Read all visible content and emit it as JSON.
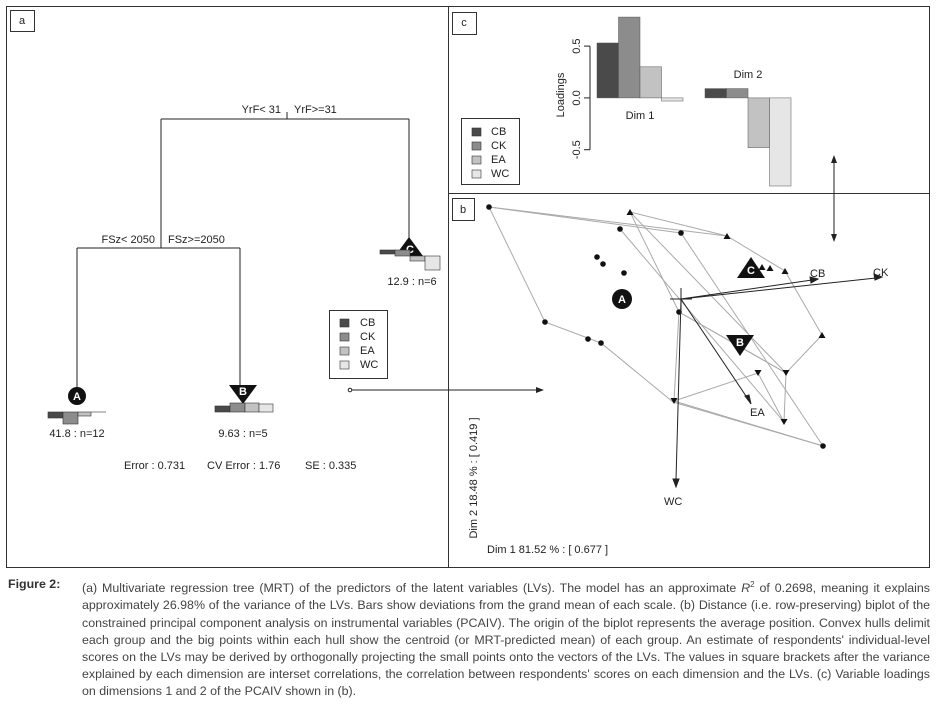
{
  "panel_a": {
    "label": "a",
    "splits": [
      "YrF< 31",
      "YrF>=31",
      "FSz< 2050",
      "FSz>=2050"
    ],
    "nodes": [
      {
        "marker": "A",
        "label": "41.8 : n=12"
      },
      {
        "marker": "B",
        "label": "9.63 : n=5"
      },
      {
        "marker": "C",
        "label": "12.9 : n=6"
      }
    ],
    "legend": [
      "CB",
      "CK",
      "EA",
      "WC"
    ],
    "errors": [
      "Error :  0.731",
      "CV Error :  1.76",
      "SE :  0.335"
    ]
  },
  "panel_b": {
    "label": "b",
    "vectors": [
      "CB",
      "CK",
      "EA",
      "WC"
    ],
    "centroids": [
      "A",
      "B",
      "C"
    ],
    "xlabel": "Dim 1 81.52 % : [ 0.677 ]",
    "ylabel": "Dim 2 18.48 % : [ 0.419 ]"
  },
  "panel_c": {
    "label": "c",
    "type": "bar",
    "ylabel": "Loadings",
    "categories": [
      "Dim 1",
      "Dim 2"
    ],
    "series": [
      {
        "name": "CB",
        "color": "#4a4a4a",
        "values": [
          0.53,
          0.09
        ]
      },
      {
        "name": "CK",
        "color": "#8c8c8c",
        "values": [
          0.78,
          0.09
        ]
      },
      {
        "name": "EA",
        "color": "#c2c2c2",
        "values": [
          0.3,
          -0.48
        ]
      },
      {
        "name": "WC",
        "color": "#e6e6e6",
        "values": [
          -0.03,
          -0.85
        ]
      }
    ],
    "ylim": [
      -0.85,
      0.8
    ],
    "yticks": [
      -0.5,
      {
        "value": 0,
        "label": "0.0"
      },
      0.5
    ]
  },
  "caption": {
    "label": "Figure 2:",
    "text_1": "(a) Multivariate regression tree (MRT) of the predictors of the latent variables (LVs). The model has an approximate ",
    "symbol": "R",
    "superscript": "2",
    "text_2": " of 0.2698, meaning it explains approximately 26.98% of the variance of the LVs. Bars show deviations from the grand mean of each scale. (b) Distance (i.e. row-preserving) biplot of the constrained principal component analysis on instrumental variables (PCAIV). The origin of the biplot represents the average position. Convex hulls delimit each group and the big points within each hull show the centroid (or MRT-predicted mean) of each group. An estimate of respondents' individual-level scores on the LVs may be derived by orthogonally projecting the small points onto the vectors of the LVs. The values in square brackets after the variance explained by each dimension are interset correlations, the correlation between respondents' scores on each dimension and the LVs. (c) Variable loadings on dimensions 1 and 2 of the PCAIV shown in (b)."
  }
}
